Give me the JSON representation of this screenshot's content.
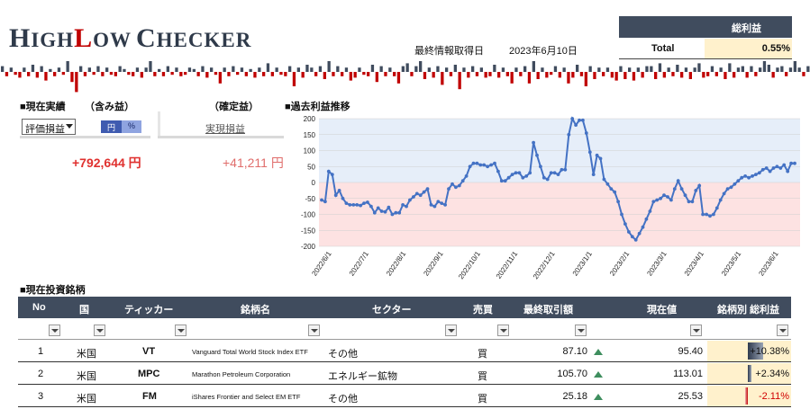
{
  "logo": {
    "text": "HighLow Checker",
    "H": "H",
    "igh": "IGH",
    "L": "L",
    "ow": "OW",
    "C": "C",
    "hecker": "HECKER"
  },
  "header": {
    "info_label": "最終情報取得日",
    "info_date": "2023年6月10日"
  },
  "total": {
    "header": "総利益",
    "label": "Total",
    "value": "0.55%"
  },
  "sections": {
    "current": "■現在実績",
    "unrealized": "（含み益）",
    "realized": "（確定益）",
    "history": "■過去利益推移",
    "holdings": "■現在投資銘柄"
  },
  "controls": {
    "select_value": "評価損益",
    "toggle_yen": "円",
    "toggle_pct": "%",
    "realized_link": "実現損益"
  },
  "summary": {
    "unrealized_value": "+792,644 円",
    "realized_value": "+41,211 円"
  },
  "colors": {
    "header_bg": "#404c5e",
    "positive": "#3e8e5e",
    "negative": "#c00000",
    "line": "#4472c4",
    "highlight": "#fff1cc"
  },
  "chart_data": {
    "type": "line",
    "title": "",
    "ylim": [
      -200,
      200
    ],
    "yticks": [
      200,
      150,
      100,
      50,
      0,
      -50,
      -100,
      -150,
      -200
    ],
    "xticks": [
      "2022/6/1",
      "2022/7/1",
      "2022/8/1",
      "2022/9/1",
      "2022/10/1",
      "2022/11/1",
      "2022/12/1",
      "2023/1/1",
      "2023/2/1",
      "2023/3/1",
      "2023/4/1",
      "2023/5/1",
      "2023/6/1"
    ],
    "series": [
      {
        "values": [
          -55,
          -60,
          35,
          25,
          -40,
          -25,
          -50,
          -65,
          -70,
          -70,
          -70,
          -72,
          -65,
          -62,
          -75,
          -95,
          -80,
          -90,
          -92,
          -78,
          -100,
          -95,
          -95,
          -70,
          -75,
          -55,
          -45,
          -35,
          -40,
          -30,
          -20,
          -70,
          -75,
          -60,
          -65,
          -70,
          -20,
          -5,
          -15,
          -10,
          5,
          20,
          50,
          60,
          60,
          55,
          55,
          50,
          55,
          60,
          35,
          5,
          5,
          15,
          25,
          30,
          30,
          15,
          20,
          30,
          125,
          85,
          50,
          15,
          10,
          30,
          30,
          25,
          40,
          40,
          150,
          200,
          180,
          195,
          195,
          155,
          95,
          25,
          85,
          75,
          10,
          -5,
          -20,
          -30,
          -60,
          -100,
          -130,
          -155,
          -170,
          -180,
          -160,
          -140,
          -115,
          -90,
          -60,
          -55,
          -50,
          -40,
          -45,
          -55,
          -20,
          5,
          -20,
          -40,
          -60,
          -60,
          -25,
          -10,
          -100,
          -100,
          -105,
          -100,
          -80,
          -55,
          -35,
          -20,
          -15,
          -5,
          5,
          15,
          20,
          15,
          20,
          25,
          30,
          40,
          45,
          35,
          45,
          50,
          45,
          55,
          35,
          60,
          60
        ],
        "legend": ""
      }
    ]
  },
  "sparkline": {
    "values": [
      4,
      -3,
      3,
      -2,
      -4,
      3,
      -3,
      5,
      -4,
      4,
      -6,
      2,
      -3,
      3,
      -2,
      8,
      -7,
      -14,
      4,
      -3,
      3,
      -2,
      4,
      -3,
      3,
      -2,
      -3,
      4,
      2,
      -2,
      -3,
      3,
      -4,
      3,
      14,
      -3,
      2,
      -3,
      4,
      -2,
      3,
      -3,
      -2,
      3,
      2,
      -3,
      4,
      -4,
      3,
      -2,
      -8,
      3,
      -3,
      4,
      -2,
      3,
      -3,
      2,
      -4,
      3,
      -3,
      6,
      -3,
      3,
      -2,
      -3,
      4,
      -10,
      3,
      -4,
      5,
      3,
      -3,
      4,
      -5,
      10,
      -3,
      4,
      -3,
      3,
      -6,
      -4,
      3,
      -2,
      -3,
      5,
      -7,
      4,
      -3,
      3,
      -3,
      -8,
      4,
      6,
      -3,
      4,
      12,
      -5,
      3,
      -4,
      4,
      -9,
      3,
      -3,
      5,
      -12,
      3,
      -4,
      4,
      -3,
      3,
      -4,
      -3,
      5,
      -4,
      3,
      -3,
      -8,
      3,
      -3,
      4,
      -8,
      14,
      -5,
      3,
      -4,
      -2,
      4,
      -4,
      3,
      -8,
      -4,
      5,
      -3,
      -10,
      4,
      -5,
      3,
      -3,
      3,
      -4,
      -6,
      4,
      -5,
      3,
      -6,
      3,
      -4,
      4,
      4,
      -5,
      6,
      -4,
      3,
      -3,
      5,
      -4,
      3,
      -5,
      3,
      6,
      -4,
      -3,
      4,
      -3,
      3,
      -5,
      6,
      -4,
      3,
      4,
      -4,
      4,
      -3,
      3,
      8,
      5,
      -4,
      3,
      4,
      -3,
      3,
      10,
      3,
      -3,
      4
    ]
  },
  "table": {
    "headers": [
      "No",
      "国",
      "ティッカー",
      "銘柄名",
      "セクター",
      "売買",
      "最終取引額",
      "現在値",
      "銘柄別 総利益"
    ],
    "rows": [
      {
        "no": "1",
        "country": "米国",
        "ticker": "VT",
        "name": "Vanguard Total World Stock Index ETF",
        "sector": "その他",
        "side": "買",
        "last": "87.10",
        "current": "95.40",
        "ret": "+10.38%",
        "ret_value": 10.38
      },
      {
        "no": "2",
        "country": "米国",
        "ticker": "MPC",
        "name": "Marathon Petroleum Corporation",
        "sector": "エネルギー鉱物",
        "side": "買",
        "last": "105.70",
        "current": "113.01",
        "ret": "+2.34%",
        "ret_value": 2.34
      },
      {
        "no": "3",
        "country": "米国",
        "ticker": "FM",
        "name": "iShares Frontier and Select EM ETF",
        "sector": "その他",
        "side": "買",
        "last": "25.18",
        "current": "25.53",
        "ret": "-2.11%",
        "ret_value": -2.11
      }
    ]
  }
}
